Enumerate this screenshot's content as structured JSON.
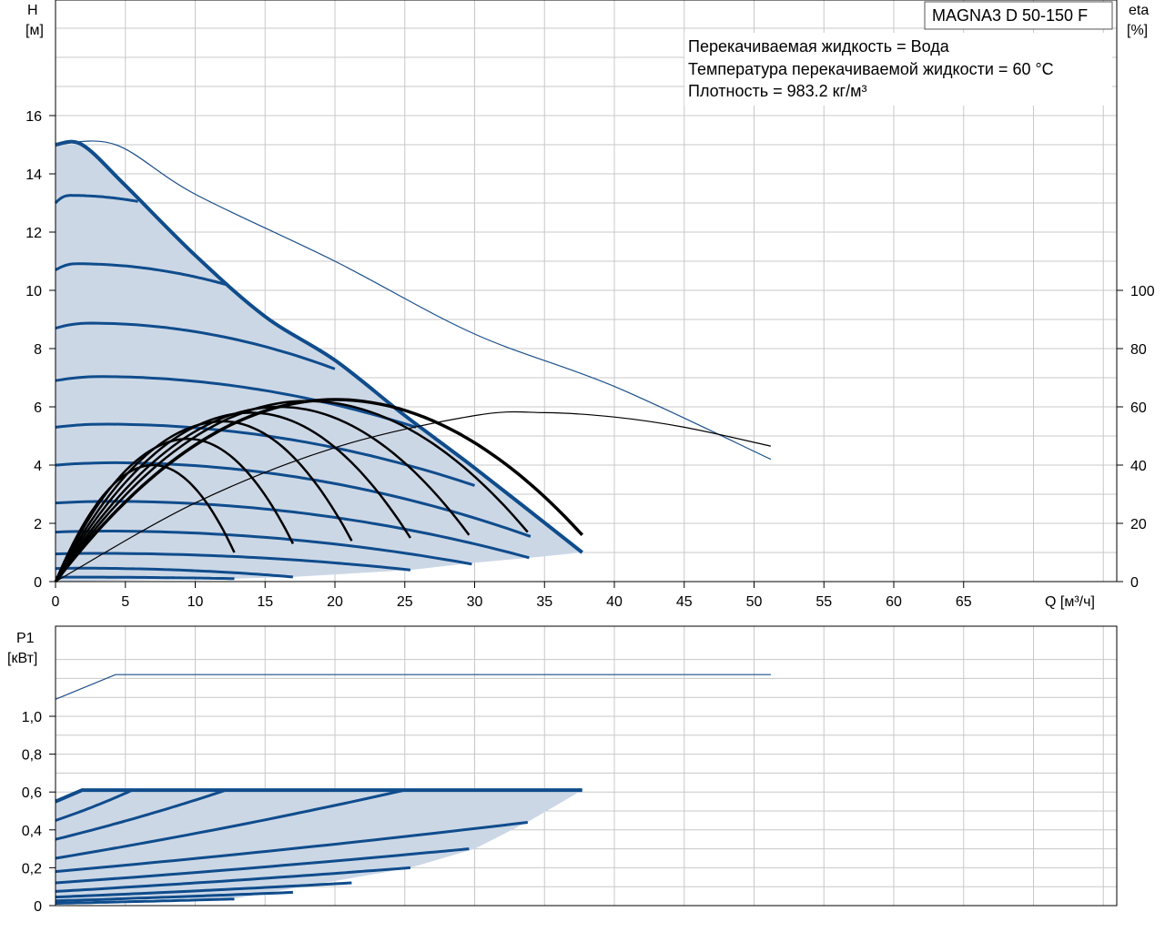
{
  "model": "MAGNA3 D 50-150 F",
  "fluid_info": [
    "Перекачиваемая жидкость = Вода",
    "Температура перекачиваемой жидкости = 60 °C",
    "Плотность = 983.2 кг/м³"
  ],
  "colors": {
    "range_fill": "#ccd7e6",
    "curve_blue": "#0f4c8c",
    "eff_black": "#000000",
    "thin_blue": "#1a4f8a",
    "grid": "#c8c8c8"
  },
  "chart_data": [
    {
      "type": "line",
      "name": "head",
      "ylabel": [
        "H",
        "[м]"
      ],
      "y2label": [
        "eta",
        "[%]"
      ],
      "xlabel": "Q [м³/ч]",
      "xlim": [
        0,
        76
      ],
      "ylim": [
        0,
        19.75
      ],
      "y2lim": [
        0,
        197.5
      ],
      "xticks": [
        0,
        5,
        10,
        15,
        20,
        25,
        30,
        35,
        40,
        45,
        50,
        55,
        60,
        65
      ],
      "yticks": [
        0,
        2,
        4,
        6,
        8,
        10,
        12,
        14,
        16
      ],
      "y2ticks": [
        0,
        20,
        40,
        60,
        80,
        100
      ],
      "max_curve": [
        [
          0,
          15
        ],
        [
          1.9,
          15
        ],
        [
          5,
          13.6
        ],
        [
          10,
          11.2
        ],
        [
          15,
          9.1
        ],
        [
          20,
          7.6
        ],
        [
          25,
          5.7
        ],
        [
          30,
          3.9
        ],
        [
          37.7,
          1.0
        ]
      ],
      "min_curve": [
        [
          0,
          0
        ],
        [
          12.8,
          0.1
        ],
        [
          17,
          0.16
        ],
        [
          25.4,
          0.4
        ],
        [
          30,
          0.65
        ],
        [
          34,
          0.82
        ],
        [
          37.7,
          1.0
        ]
      ],
      "speed_curves": [
        {
          "h0": 13.0,
          "end": [
            5.9,
            13.05
          ]
        },
        {
          "h0": 10.7,
          "end": [
            12.2,
            10.2
          ]
        },
        {
          "h0": 8.7,
          "end": [
            20.0,
            7.3
          ]
        },
        {
          "h0": 6.9,
          "end": [
            25.8,
            5.3
          ]
        },
        {
          "h0": 5.3,
          "end": [
            30.0,
            3.3
          ]
        },
        {
          "h0": 4.0,
          "end": [
            34.0,
            1.55
          ]
        },
        {
          "h0": 2.7,
          "end": [
            33.9,
            0.82
          ]
        },
        {
          "h0": 1.7,
          "end": [
            29.8,
            0.6
          ]
        },
        {
          "h0": 0.95,
          "end": [
            25.4,
            0.4
          ]
        },
        {
          "h0": 0.45,
          "end": [
            17.0,
            0.16
          ]
        },
        {
          "h0": 0.15,
          "end": [
            12.8,
            0.1
          ]
        }
      ],
      "efficiency_curves": [
        {
          "qmax": 12.8,
          "peak": [
            7.0,
            40
          ],
          "end_eta": 10
        },
        {
          "qmax": 17.0,
          "peak": [
            9.5,
            49
          ],
          "end_eta": 13
        },
        {
          "qmax": 21.2,
          "peak": [
            12.0,
            55
          ],
          "end_eta": 14
        },
        {
          "qmax": 25.4,
          "peak": [
            14.0,
            58
          ],
          "end_eta": 15
        },
        {
          "qmax": 29.6,
          "peak": [
            16.0,
            60
          ],
          "end_eta": 16
        },
        {
          "qmax": 33.8,
          "peak": [
            18.0,
            62
          ],
          "end_eta": 17
        },
        {
          "qmax": 37.7,
          "peak": [
            20.0,
            62.5
          ],
          "end_eta": 16
        }
      ],
      "thin_head_curve": [
        [
          0,
          15
        ],
        [
          4.3,
          15
        ],
        [
          10,
          13.3
        ],
        [
          20,
          11
        ],
        [
          30,
          8.5
        ],
        [
          40,
          6.7
        ],
        [
          51.2,
          4.2
        ]
      ],
      "thin_eff_curve": [
        [
          0,
          0
        ],
        [
          10,
          27
        ],
        [
          20,
          46
        ],
        [
          30,
          57
        ],
        [
          35,
          58
        ],
        [
          40,
          56.5
        ],
        [
          45,
          53
        ],
        [
          51.2,
          46.5
        ]
      ]
    },
    {
      "type": "line",
      "name": "power",
      "ylabel": [
        "P1",
        "[кВт]"
      ],
      "xlim": [
        0,
        76
      ],
      "ylim": [
        0,
        1.35
      ],
      "yticks": [
        "0",
        "0,2",
        "0,4",
        "0,6",
        "0,8",
        "1,0"
      ],
      "ytick_values": [
        0,
        0.2,
        0.4,
        0.6,
        0.8,
        1.0
      ],
      "max_power": [
        [
          0,
          0.55
        ],
        [
          1.9,
          0.61
        ],
        [
          37.7,
          0.61
        ]
      ],
      "min_power": [
        [
          0,
          0.03
        ],
        [
          13,
          0.04
        ],
        [
          25.4,
          0.2
        ],
        [
          30,
          0.3
        ],
        [
          34,
          0.45
        ],
        [
          37.7,
          0.61
        ]
      ],
      "power_curves": [
        {
          "p0": 0.45,
          "end": [
            5.5,
            0.61
          ]
        },
        {
          "p0": 0.35,
          "end": [
            12.2,
            0.61
          ]
        },
        {
          "p0": 0.25,
          "end": [
            25.0,
            0.61
          ]
        },
        {
          "p0": 0.18,
          "end": [
            33.8,
            0.44
          ]
        },
        {
          "p0": 0.12,
          "end": [
            29.6,
            0.3
          ]
        },
        {
          "p0": 0.075,
          "end": [
            25.4,
            0.2
          ]
        },
        {
          "p0": 0.045,
          "end": [
            21.2,
            0.12
          ]
        },
        {
          "p0": 0.025,
          "end": [
            17.0,
            0.07
          ]
        },
        {
          "p0": 0.012,
          "end": [
            12.8,
            0.035
          ]
        }
      ],
      "thin_power_curve": [
        [
          0,
          1.09
        ],
        [
          4.3,
          1.22
        ],
        [
          51.2,
          1.22
        ]
      ]
    }
  ]
}
